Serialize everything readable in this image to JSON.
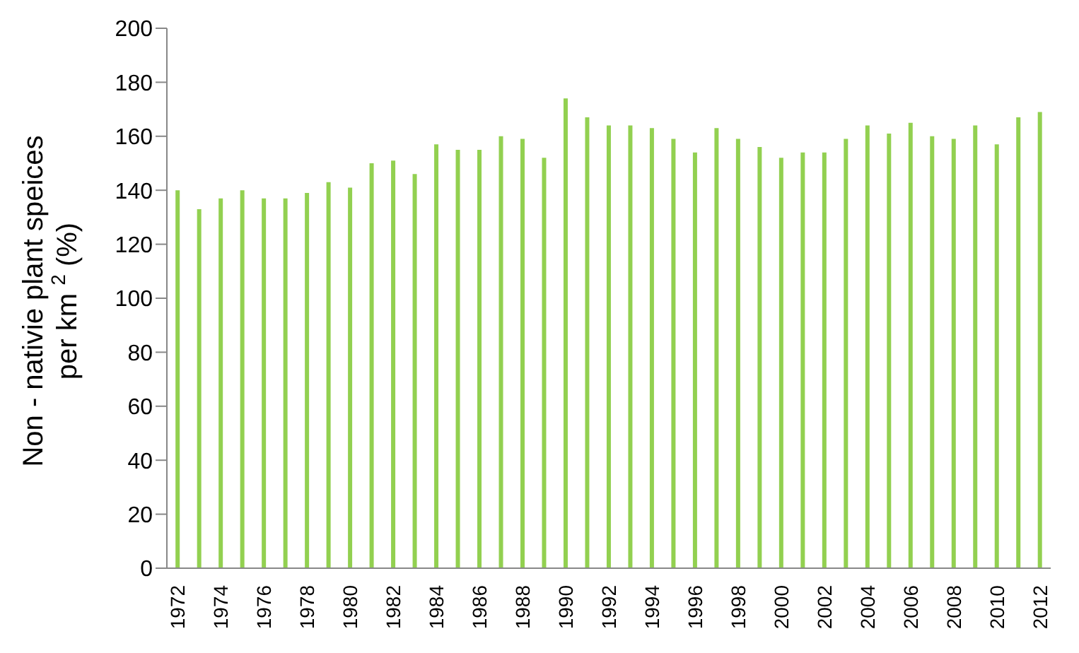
{
  "chart_data": {
    "type": "bar",
    "ylabel": "Non - nativie plant speices\nper km $^{2}$ (%)",
    "categories": [
      "1972",
      null,
      "1974",
      null,
      "1976",
      null,
      "1978",
      null,
      "1980",
      null,
      "1982",
      null,
      "1984",
      null,
      "1986",
      null,
      "1988",
      null,
      "1990",
      null,
      "1992",
      null,
      "1994",
      null,
      "1996",
      null,
      "1998",
      null,
      "2000",
      null,
      "2002",
      null,
      "2004",
      null,
      "2006",
      null,
      "2008",
      null,
      "2010",
      null,
      "2012"
    ],
    "values": [
      140,
      133,
      137,
      140,
      137,
      137,
      139,
      143,
      141,
      150,
      151,
      146,
      157,
      155,
      155,
      160,
      159,
      152,
      174,
      167,
      164,
      164,
      163,
      159,
      154,
      163,
      159,
      156,
      152,
      154,
      154,
      159,
      164,
      161,
      165,
      160,
      159,
      164,
      157,
      167,
      169
    ],
    "color": "#92d050",
    "ylim": [
      0,
      200
    ],
    "yticks": [
      0,
      20,
      40,
      60,
      80,
      100,
      120,
      140,
      160,
      180,
      200
    ],
    "grid": false
  }
}
